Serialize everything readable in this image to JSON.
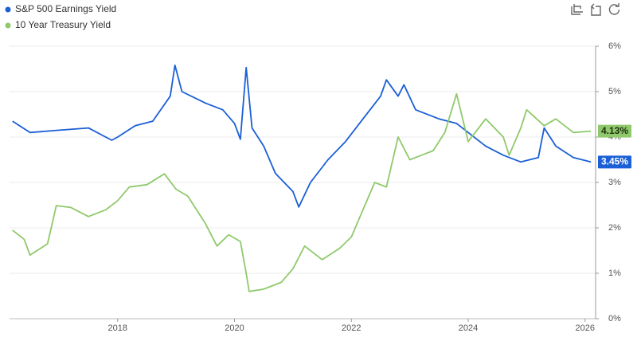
{
  "chart_data": {
    "type": "line",
    "xlim": [
      2016.15,
      2026.18
    ],
    "xticks": [
      2018,
      2020,
      2022,
      2024,
      2026
    ],
    "ylim": [
      0,
      6
    ],
    "yticks": [
      {
        "value": 0,
        "label": "0%"
      },
      {
        "value": 1,
        "label": "1%"
      },
      {
        "value": 2,
        "label": "2%"
      },
      {
        "value": 3,
        "label": "3%"
      },
      {
        "value": 4,
        "label": "4%"
      },
      {
        "value": 5,
        "label": "5%"
      },
      {
        "value": 6,
        "label": "6%"
      }
    ],
    "grid": true,
    "legend": "top-left",
    "series": [
      {
        "name": "S&P 500 Earnings Yield",
        "color": "#1a5fd6",
        "last_label": "3.45%",
        "x": [
          2016.2,
          2016.5,
          2017.0,
          2017.5,
          2017.9,
          2018.0,
          2018.3,
          2018.6,
          2018.9,
          2018.98,
          2019.1,
          2019.5,
          2019.8,
          2020.0,
          2020.1,
          2020.2,
          2020.3,
          2020.5,
          2020.7,
          2021.0,
          2021.1,
          2021.3,
          2021.6,
          2021.9,
          2022.2,
          2022.5,
          2022.6,
          2022.8,
          2022.9,
          2023.1,
          2023.5,
          2023.8,
          2024.0,
          2024.3,
          2024.6,
          2024.9,
          2025.2,
          2025.3,
          2025.5,
          2025.8,
          2026.1
        ],
        "values": [
          4.35,
          4.1,
          4.15,
          4.2,
          3.93,
          4.0,
          4.25,
          4.35,
          4.9,
          5.58,
          5.0,
          4.75,
          4.6,
          4.3,
          3.95,
          5.53,
          4.2,
          3.8,
          3.2,
          2.8,
          2.46,
          3.0,
          3.5,
          3.9,
          4.4,
          4.9,
          5.26,
          4.9,
          5.15,
          4.6,
          4.4,
          4.3,
          4.1,
          3.8,
          3.6,
          3.45,
          3.55,
          4.2,
          3.8,
          3.55,
          3.45
        ]
      },
      {
        "name": "10 Year Treasury Yield",
        "color": "#8fc96b",
        "last_label": "4.13%",
        "x": [
          2016.2,
          2016.4,
          2016.5,
          2016.8,
          2016.95,
          2017.2,
          2017.5,
          2017.8,
          2018.0,
          2018.2,
          2018.5,
          2018.8,
          2019.0,
          2019.2,
          2019.5,
          2019.7,
          2019.9,
          2020.1,
          2020.2,
          2020.25,
          2020.5,
          2020.8,
          2021.0,
          2021.2,
          2021.5,
          2021.8,
          2022.0,
          2022.2,
          2022.4,
          2022.6,
          2022.8,
          2023.0,
          2023.2,
          2023.4,
          2023.6,
          2023.8,
          2024.0,
          2024.3,
          2024.6,
          2024.7,
          2024.9,
          2025.0,
          2025.3,
          2025.5,
          2025.8,
          2026.1
        ],
        "values": [
          1.95,
          1.75,
          1.4,
          1.65,
          2.49,
          2.45,
          2.25,
          2.4,
          2.6,
          2.9,
          2.95,
          3.19,
          2.85,
          2.7,
          2.1,
          1.6,
          1.85,
          1.7,
          1.0,
          0.6,
          0.65,
          0.8,
          1.1,
          1.6,
          1.3,
          1.55,
          1.8,
          2.4,
          3.0,
          2.9,
          4.0,
          3.5,
          3.6,
          3.7,
          4.1,
          4.95,
          3.9,
          4.4,
          4.0,
          3.6,
          4.2,
          4.6,
          4.25,
          4.4,
          4.1,
          4.13
        ]
      }
    ]
  }
}
